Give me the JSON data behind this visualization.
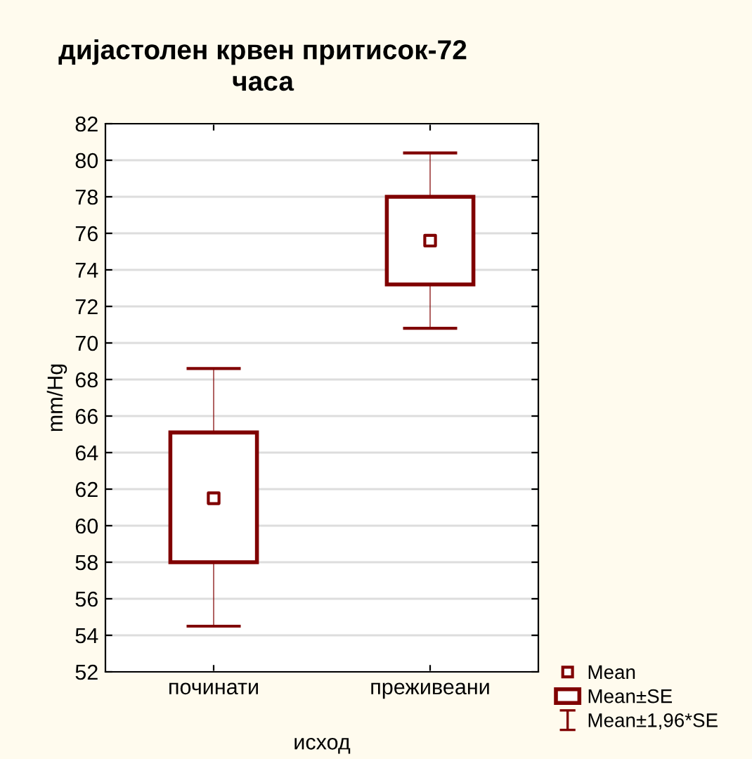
{
  "chart_data": {
    "type": "scatter",
    "title": "дијастолен крвен притисок-72\nчаса",
    "xlabel": "исход",
    "ylabel": "mm/Hg",
    "categories": [
      "починати",
      "преживеани"
    ],
    "series": [
      {
        "name": "Mean",
        "color": "#800000",
        "marker": "square",
        "values": [
          61.5,
          75.6
        ]
      },
      {
        "name": "Mean±SE",
        "type": "bar",
        "color": "#800000",
        "base": [
          58.0,
          73.2
        ],
        "values": [
          7.1,
          4.8
        ]
      },
      {
        "name": "Mean±1,96*SE",
        "type": "bar",
        "line_style": "solid",
        "color": "#800000",
        "base": [
          54.5,
          70.8
        ],
        "values": [
          14.1,
          9.6
        ]
      }
    ],
    "ylim": [
      52,
      82
    ],
    "yticks": [
      52,
      54,
      56,
      58,
      60,
      62,
      64,
      66,
      68,
      70,
      72,
      74,
      76,
      78,
      80,
      82
    ],
    "grid": "y",
    "legend": "bottom right"
  }
}
